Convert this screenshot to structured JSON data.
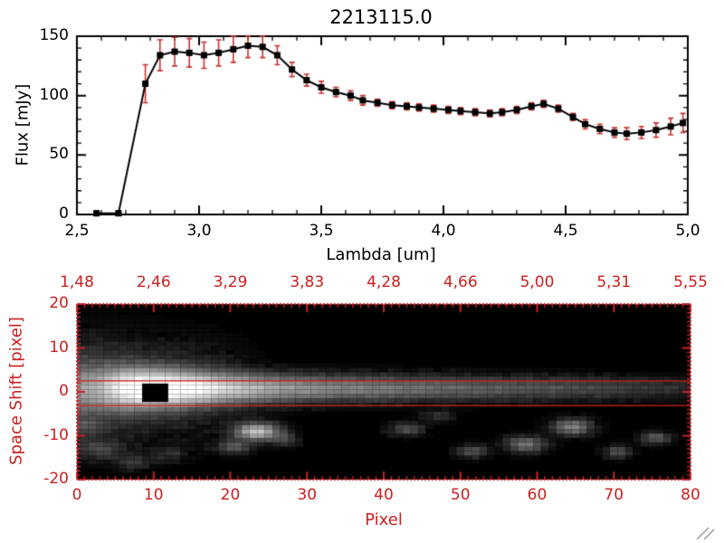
{
  "chart_data": [
    {
      "type": "line",
      "title": "2213115.0",
      "xlabel": "Lambda [um]",
      "ylabel": "Flux [mJy]",
      "xlim": [
        2.5,
        5.0
      ],
      "ylim": [
        0,
        150
      ],
      "axis_color": "#000000",
      "line_color": "#000000",
      "marker": "filled-square",
      "error_bar_color": "#c83232",
      "x_minor_step": 0.1,
      "y_minor_step": 10,
      "x_ticks": [
        {
          "v": 2.5,
          "label": "2,5"
        },
        {
          "v": 3.0,
          "label": "3,0"
        },
        {
          "v": 3.5,
          "label": "3,5"
        },
        {
          "v": 4.0,
          "label": "4,0"
        },
        {
          "v": 4.5,
          "label": "4,5"
        },
        {
          "v": 5.0,
          "label": "5,0"
        }
      ],
      "y_ticks": [
        {
          "v": 0,
          "label": "0"
        },
        {
          "v": 50,
          "label": "50"
        },
        {
          "v": 100,
          "label": "100"
        },
        {
          "v": 150,
          "label": "150"
        }
      ],
      "series": [
        {
          "name": "flux-spectrum",
          "x": [
            2.58,
            2.67,
            2.78,
            2.84,
            2.9,
            2.96,
            3.02,
            3.08,
            3.14,
            3.2,
            3.26,
            3.32,
            3.38,
            3.44,
            3.5,
            3.56,
            3.62,
            3.67,
            3.73,
            3.79,
            3.85,
            3.9,
            3.96,
            4.02,
            4.07,
            4.13,
            4.19,
            4.24,
            4.3,
            4.36,
            4.41,
            4.47,
            4.53,
            4.58,
            4.64,
            4.7,
            4.75,
            4.81,
            4.87,
            4.93,
            4.98
          ],
          "y": [
            1,
            1,
            110,
            134,
            137,
            136,
            134,
            136,
            139,
            142,
            141,
            134,
            122,
            113,
            107,
            103,
            100,
            96,
            94,
            92,
            91,
            90,
            89,
            88,
            87,
            86,
            85,
            86,
            88,
            91,
            93,
            89,
            82,
            76,
            72,
            69,
            68,
            69,
            71,
            74,
            77
          ],
          "yerr": [
            2,
            2,
            16,
            13,
            12,
            12,
            11,
            11,
            11,
            10,
            9,
            8,
            6,
            5,
            5,
            4,
            4,
            4,
            3,
            3,
            3,
            3,
            3,
            3,
            3,
            3,
            3,
            3,
            3,
            3,
            3,
            3,
            3,
            4,
            4,
            4,
            5,
            5,
            6,
            7,
            8
          ]
        }
      ]
    },
    {
      "type": "heatmap",
      "xlabel": "Pixel",
      "ylabel": "Space Shift [pixel]",
      "xlim": [
        0,
        80
      ],
      "ylim": [
        -20,
        20
      ],
      "axis_color": "#cc2020",
      "background": "#000000",
      "x_ticks": [
        {
          "v": 0,
          "label": "0"
        },
        {
          "v": 10,
          "label": "10"
        },
        {
          "v": 20,
          "label": "20"
        },
        {
          "v": 30,
          "label": "30"
        },
        {
          "v": 40,
          "label": "40"
        },
        {
          "v": 50,
          "label": "50"
        },
        {
          "v": 60,
          "label": "60"
        },
        {
          "v": 70,
          "label": "70"
        },
        {
          "v": 80,
          "label": "80"
        }
      ],
      "y_ticks": [
        {
          "v": 20,
          "label": "20"
        },
        {
          "v": 10,
          "label": "10"
        },
        {
          "v": 0,
          "label": "0"
        },
        {
          "v": -10,
          "label": "-10"
        },
        {
          "v": -20,
          "label": "-20"
        }
      ],
      "top_axis_ticks": [
        {
          "v": 0,
          "label": "1,48"
        },
        {
          "v": 10,
          "label": "2,46"
        },
        {
          "v": 20,
          "label": "3,29"
        },
        {
          "v": 30,
          "label": "3,83"
        },
        {
          "v": 40,
          "label": "4,28"
        },
        {
          "v": 50,
          "label": "4,66"
        },
        {
          "v": 60,
          "label": "5,00"
        },
        {
          "v": 70,
          "label": "5,31"
        },
        {
          "v": 80,
          "label": "5,55"
        }
      ],
      "trace": {
        "y_center": 0.8,
        "profile": [
          [
            0,
            0.3,
            3.6
          ],
          [
            3,
            0.45,
            3.4
          ],
          [
            6,
            0.8,
            3.2
          ],
          [
            8,
            1.0,
            3.0
          ],
          [
            13,
            1.0,
            2.8
          ],
          [
            16,
            0.92,
            2.6
          ],
          [
            20,
            0.74,
            2.4
          ],
          [
            25,
            0.62,
            2.2
          ],
          [
            30,
            0.52,
            2.1
          ],
          [
            35,
            0.46,
            2.0
          ],
          [
            40,
            0.42,
            2.0
          ],
          [
            45,
            0.38,
            1.9
          ],
          [
            50,
            0.34,
            1.9
          ],
          [
            55,
            0.31,
            1.8
          ],
          [
            60,
            0.28,
            1.8
          ],
          [
            65,
            0.25,
            1.7
          ],
          [
            70,
            0.21,
            1.7
          ],
          [
            75,
            0.17,
            1.6
          ],
          [
            80,
            0.13,
            1.6
          ]
        ],
        "halo": {
          "amp": 0.28,
          "x_end": 26,
          "sigma": 7.0
        }
      },
      "blobs": [
        [
          23.5,
          -9,
          0.75,
          2.0,
          1.3
        ],
        [
          20.5,
          -12.5,
          0.3,
          1.5,
          1.0
        ],
        [
          27,
          -11,
          0.22,
          1.2,
          1.0
        ],
        [
          43,
          -8.5,
          0.28,
          1.5,
          1.0
        ],
        [
          51.5,
          -13.5,
          0.28,
          1.3,
          1.0
        ],
        [
          58.5,
          -12,
          0.4,
          1.8,
          1.2
        ],
        [
          64.5,
          -8,
          0.45,
          1.8,
          1.3
        ],
        [
          70.5,
          -13.5,
          0.28,
          1.2,
          1.0
        ],
        [
          75.5,
          -10.5,
          0.3,
          1.3,
          1.0
        ],
        [
          3,
          -13,
          0.2,
          2.2,
          1.6
        ],
        [
          7.5,
          -16,
          0.16,
          1.6,
          1.2
        ],
        [
          1,
          -8,
          0.18,
          1.6,
          1.2
        ],
        [
          12,
          -14,
          0.14,
          1.6,
          1.1
        ],
        [
          47,
          -5.5,
          0.15,
          1.3,
          0.9
        ]
      ],
      "mask_rect": {
        "x0": 8.5,
        "x1": 11.9,
        "y0": -2.3,
        "y1": 1.9,
        "color": "#000000"
      },
      "aperture_lines": {
        "color": "#cc2020",
        "y": [
          2.5,
          -3.1
        ]
      },
      "noise_amp": 0.06
    }
  ]
}
